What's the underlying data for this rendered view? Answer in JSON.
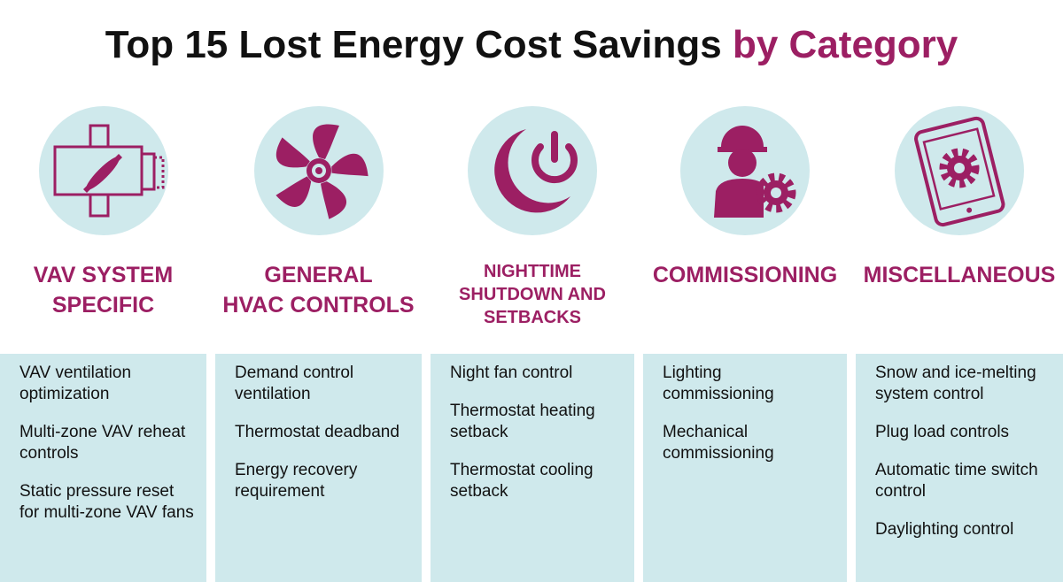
{
  "title": {
    "main": "Top 15 Lost Energy Cost Savings",
    "highlight": "by Category"
  },
  "columns": [
    {
      "heading": [
        "VAV SYSTEM",
        "SPECIFIC"
      ],
      "items": [
        "VAV ventilation optimization",
        "Multi-zone VAV reheat controls",
        "Static pressure reset for multi-zone VAV fans"
      ]
    },
    {
      "heading": [
        "GENERAL",
        "HVAC CONTROLS"
      ],
      "items": [
        "Demand control ventilation",
        "Thermostat deadband",
        "Energy recovery requirement"
      ]
    },
    {
      "heading": [
        "NIGHTTIME",
        "SHUTDOWN AND",
        "SETBACKS"
      ],
      "items": [
        "Night fan control",
        "Thermostat heating setback",
        "Thermostat cooling setback"
      ]
    },
    {
      "heading": [
        "COMMISSIONING"
      ],
      "items": [
        "Lighting commissioning",
        "Mechanical commissioning"
      ]
    },
    {
      "heading": [
        "MISCELLANEOUS"
      ],
      "items": [
        "Snow and ice-melting system control",
        "Plug load controls",
        "Automatic time switch control",
        "Daylighting control"
      ]
    }
  ]
}
